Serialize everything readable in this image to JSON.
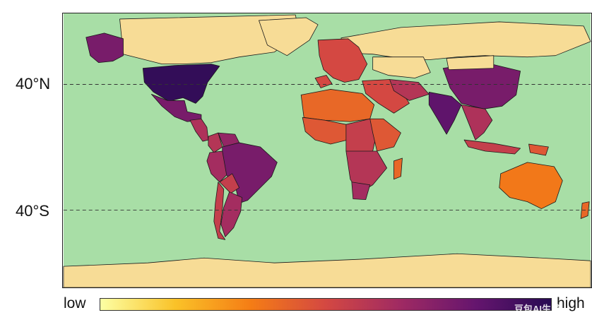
{
  "labels": {
    "lat_north": "40°N",
    "lat_south": "40°S",
    "low": "low",
    "high": "high",
    "watermark": "豆包AI生成"
  },
  "colors": {
    "ocean": "#a8dea6",
    "no_data": "#f7dc96",
    "border": "#1a1a1a",
    "gridline": "#333333",
    "colormap": [
      "#fcffa4",
      "#fac228",
      "#f57d15",
      "#d44842",
      "#9f2a63",
      "#65156e",
      "#280b53"
    ]
  },
  "regions": [
    {
      "name": "Canada",
      "value": null
    },
    {
      "name": "Alaska",
      "value": 0.78
    },
    {
      "name": "United States",
      "value": 0.97
    },
    {
      "name": "Mexico",
      "value": 0.78
    },
    {
      "name": "Central America",
      "value": 0.62
    },
    {
      "name": "Colombia",
      "value": 0.6
    },
    {
      "name": "Venezuela",
      "value": 0.7
    },
    {
      "name": "Brazil",
      "value": 0.78
    },
    {
      "name": "Peru",
      "value": 0.65
    },
    {
      "name": "Bolivia",
      "value": 0.55
    },
    {
      "name": "Argentina",
      "value": 0.65
    },
    {
      "name": "Chile",
      "value": 0.55
    },
    {
      "name": "Greenland",
      "value": null
    },
    {
      "name": "Russia",
      "value": null
    },
    {
      "name": "Europe",
      "value": 0.5
    },
    {
      "name": "Spain",
      "value": 0.5
    },
    {
      "name": "Kazakhstan",
      "value": null
    },
    {
      "name": "China",
      "value": 0.78
    },
    {
      "name": "Mongolia",
      "value": null
    },
    {
      "name": "India",
      "value": 0.85
    },
    {
      "name": "Middle East",
      "value": 0.5
    },
    {
      "name": "Iran",
      "value": 0.6
    },
    {
      "name": "Southeast Asia",
      "value": 0.62
    },
    {
      "name": "Indonesia",
      "value": 0.55
    },
    {
      "name": "Papua New Guinea",
      "value": 0.45
    },
    {
      "name": "North Africa",
      "value": 0.4
    },
    {
      "name": "West Africa",
      "value": 0.45
    },
    {
      "name": "Central Africa",
      "value": 0.55
    },
    {
      "name": "East Africa",
      "value": 0.45
    },
    {
      "name": "Southern Africa",
      "value": 0.6
    },
    {
      "name": "South Africa",
      "value": 0.65
    },
    {
      "name": "Madagascar",
      "value": 0.4
    },
    {
      "name": "Australia",
      "value": 0.35
    },
    {
      "name": "New Zealand",
      "value": 0.4
    },
    {
      "name": "Antarctica",
      "value": null
    }
  ]
}
